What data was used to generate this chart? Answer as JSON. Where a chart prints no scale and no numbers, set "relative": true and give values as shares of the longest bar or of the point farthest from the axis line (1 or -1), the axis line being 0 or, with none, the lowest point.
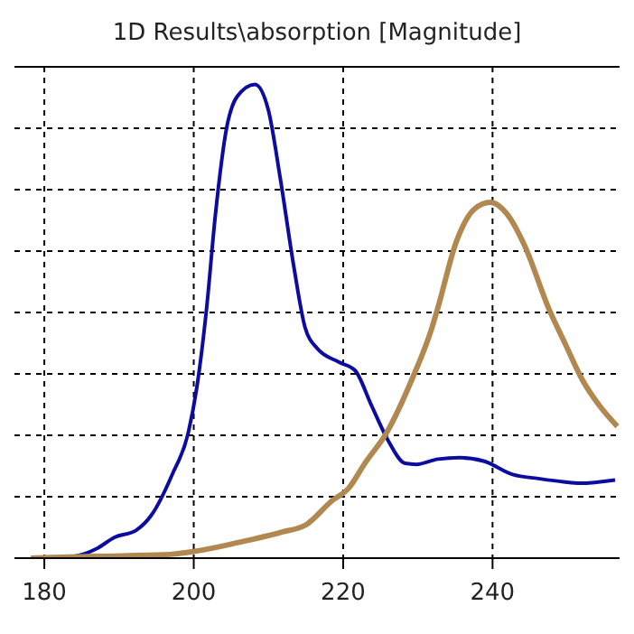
{
  "chart_data": {
    "type": "line",
    "title": "1D Results\\absorption [Magnitude]",
    "relative": true,
    "grid": true,
    "marker": "none",
    "line_style": "solid",
    "xlim": [
      176,
      257
    ],
    "xticks": [
      180,
      200,
      220,
      240
    ],
    "series": [
      {
        "color": "#0c0ca0",
        "x": [
          178.2,
          184,
          187,
          189.4,
          192.3,
          194.3,
          197.1,
          199.3,
          200.4,
          201.7,
          202.9,
          204.4,
          205.8,
          208.2,
          210,
          211.6,
          213.4,
          214.9,
          216.5,
          219.4,
          221.6,
          223.8,
          226,
          228.3,
          229.8,
          232.7,
          235.6,
          238.8,
          242.8,
          246.1,
          249.5,
          251.7,
          256.4
        ],
        "values": [
          0,
          0.004,
          0.02,
          0.044,
          0.059,
          0.09,
          0.176,
          0.267,
          0.359,
          0.524,
          0.725,
          0.908,
          0.974,
          1,
          0.945,
          0.8,
          0.615,
          0.487,
          0.443,
          0.414,
          0.396,
          0.322,
          0.249,
          0.2,
          0.198,
          0.209,
          0.212,
          0.205,
          0.176,
          0.168,
          0.161,
          0.158,
          0.165
        ]
      },
      {
        "color": "#b08850",
        "x": [
          178.2,
          187,
          196,
          200.4,
          206,
          211.8,
          215,
          218.5,
          220.7,
          222.9,
          225.9,
          229.2,
          231.9,
          232.6,
          235.2,
          237.5,
          239.7,
          242,
          244.2,
          247.6,
          249.8,
          252,
          254.3,
          256.7
        ],
        "values": [
          0,
          0.004,
          0.007,
          0.015,
          0.033,
          0.055,
          0.07,
          0.121,
          0.147,
          0.2,
          0.267,
          0.377,
          0.487,
          0.524,
          0.67,
          0.736,
          0.751,
          0.725,
          0.663,
          0.524,
          0.45,
          0.377,
          0.322,
          0.278
        ]
      }
    ]
  }
}
